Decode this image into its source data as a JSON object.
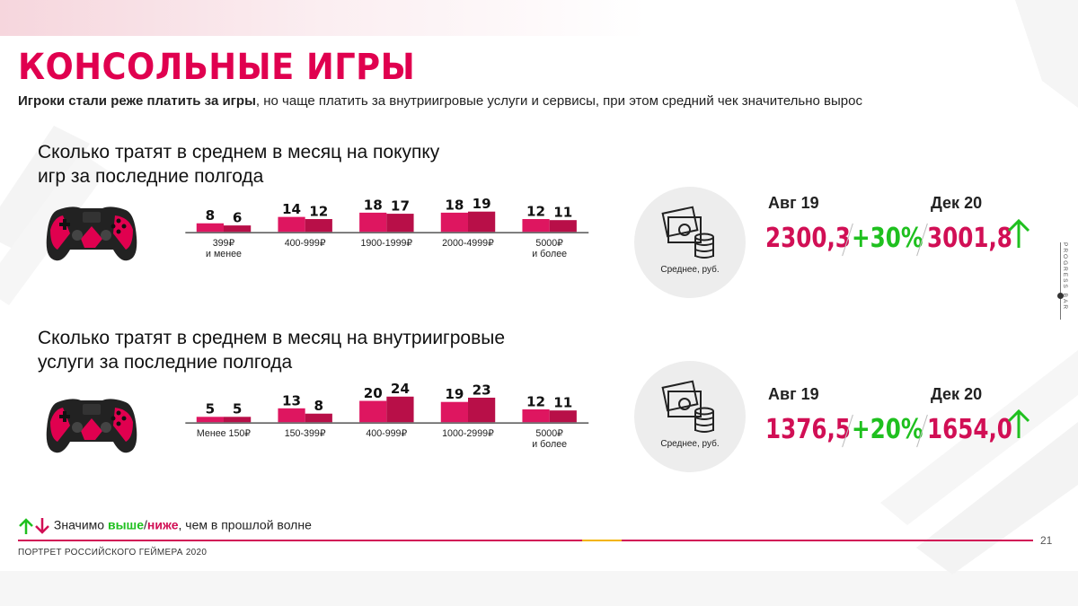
{
  "page": {
    "title": "КОНСОЛЬНЫЕ ИГРЫ",
    "subtitle_bold": "Игроки стали реже платить за игры",
    "subtitle_rest": ", но чаще платить за внутриигровые услуги и сервисы, при этом средний чек значительно вырос",
    "footer": "ПОРТРЕТ РОССИЙСКОГО ГЕЙМЕРА 2020",
    "page_number": "21",
    "progress_label": "PROGRESS BAR",
    "colors": {
      "accent": "#e0004f",
      "bar_light": "#de1660",
      "bar_dark": "#b80f48",
      "green": "#1fc01f"
    }
  },
  "legend": {
    "text_before": "Значимо ",
    "higher": "выше",
    "sep": "/",
    "lower": "ниже",
    "text_after": ", чем в прошлой волне"
  },
  "sections": [
    {
      "question_line1": "Сколько тратят в среднем в месяц на покупку",
      "question_line2": "игр за последние полгода",
      "avg_label": "Среднее, руб.",
      "period1": "Авг 19",
      "period2": "Дек 20",
      "value1": "2300,3",
      "change": "+30%",
      "value2": "3001,8",
      "trend": "up"
    },
    {
      "question_line1": "Сколько тратят в среднем в месяц на внутриигровые",
      "question_line2": "услуги за последние полгода",
      "avg_label": "Среднее, руб.",
      "period1": "Авг 19",
      "period2": "Дек 20",
      "value1": "1376,5",
      "change": "+20%",
      "value2": "1654,0",
      "trend": "up"
    }
  ],
  "chart_data": [
    {
      "type": "bar",
      "categories": [
        "399₽\nи менее",
        "400-999₽",
        "1900-1999₽",
        "2000-4999₽",
        "5000₽\nи более"
      ],
      "series": [
        {
          "values": [
            8,
            14,
            18,
            18,
            12
          ]
        },
        {
          "values": [
            6,
            12,
            17,
            19,
            11
          ]
        }
      ],
      "ylim": [
        0,
        24
      ]
    },
    {
      "type": "bar",
      "categories": [
        "Менее 150₽",
        "150-399₽",
        "400-999₽",
        "1000-2999₽",
        "5000₽\nи более"
      ],
      "series": [
        {
          "values": [
            5,
            13,
            20,
            19,
            12
          ]
        },
        {
          "values": [
            5,
            8,
            24,
            23,
            11
          ]
        }
      ],
      "ylim": [
        0,
        24
      ]
    }
  ]
}
